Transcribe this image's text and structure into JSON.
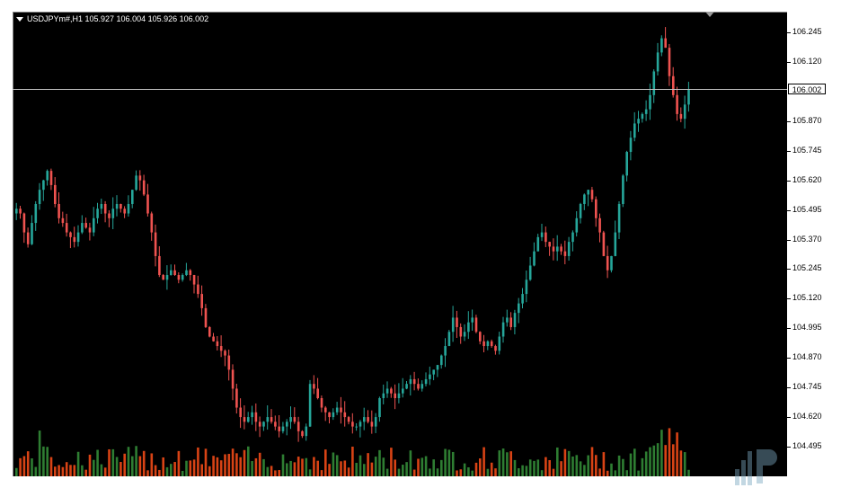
{
  "chart": {
    "symbol_header": "USDJPYm#,H1  105.927 106.004 105.926 106.002",
    "current_price": "106.002",
    "price_ticks": [
      "106.245",
      "106.120",
      "105.870",
      "105.745",
      "105.620",
      "105.495",
      "105.370",
      "105.245",
      "105.120",
      "104.995",
      "104.870",
      "104.745",
      "104.620",
      "104.495"
    ],
    "bull_color": "#26a69a",
    "bear_color": "#ef5350",
    "volume_bull_color": "#2e7d32",
    "volume_bear_color": "#d84315"
  },
  "chart_data": {
    "type": "candlestick",
    "ylim": [
      104.4,
      106.3
    ],
    "close_series": [
      105.5,
      105.48,
      105.4,
      105.35,
      105.44,
      105.52,
      105.58,
      105.62,
      105.66,
      105.6,
      105.52,
      105.46,
      105.44,
      105.4,
      105.38,
      105.36,
      105.4,
      105.44,
      105.42,
      105.4,
      105.46,
      105.5,
      105.52,
      105.48,
      105.46,
      105.5,
      105.52,
      105.5,
      105.48,
      105.52,
      105.58,
      105.64,
      105.62,
      105.56,
      105.48,
      105.4,
      105.3,
      105.22,
      105.2,
      105.22,
      105.24,
      105.22,
      105.2,
      105.22,
      105.24,
      105.22,
      105.18,
      105.14,
      105.08,
      105.0,
      104.96,
      104.94,
      104.92,
      104.9,
      104.88,
      104.82,
      104.74,
      104.66,
      104.62,
      104.6,
      104.62,
      104.64,
      104.6,
      104.58,
      104.6,
      104.62,
      104.6,
      104.58,
      104.56,
      104.58,
      104.6,
      104.62,
      104.6,
      104.56,
      104.54,
      104.58,
      104.76,
      104.74,
      104.7,
      104.66,
      104.64,
      104.62,
      104.64,
      104.66,
      104.64,
      104.62,
      104.6,
      104.58,
      104.58,
      104.6,
      104.62,
      104.6,
      104.58,
      104.62,
      104.7,
      104.72,
      104.74,
      104.72,
      104.7,
      104.72,
      104.74,
      104.76,
      104.78,
      104.76,
      104.74,
      104.76,
      104.78,
      104.8,
      104.82,
      104.84,
      104.88,
      104.92,
      104.98,
      105.04,
      105.0,
      104.96,
      104.98,
      105.02,
      105.04,
      104.98,
      104.94,
      104.92,
      104.94,
      104.92,
      104.9,
      104.96,
      105.02,
      105.04,
      105.0,
      105.06,
      105.1,
      105.14,
      105.2,
      105.26,
      105.32,
      105.38,
      105.4,
      105.36,
      105.34,
      105.32,
      105.34,
      105.32,
      105.3,
      105.36,
      105.4,
      105.46,
      105.52,
      105.56,
      105.58,
      105.54,
      105.46,
      105.4,
      105.3,
      105.24,
      105.3,
      105.4,
      105.52,
      105.64,
      105.74,
      105.8,
      105.86,
      105.88,
      105.9,
      105.92,
      105.98,
      106.08,
      106.16,
      106.22,
      106.18,
      106.06,
      105.98,
      105.9,
      105.88,
      105.94,
      106.002
    ]
  }
}
